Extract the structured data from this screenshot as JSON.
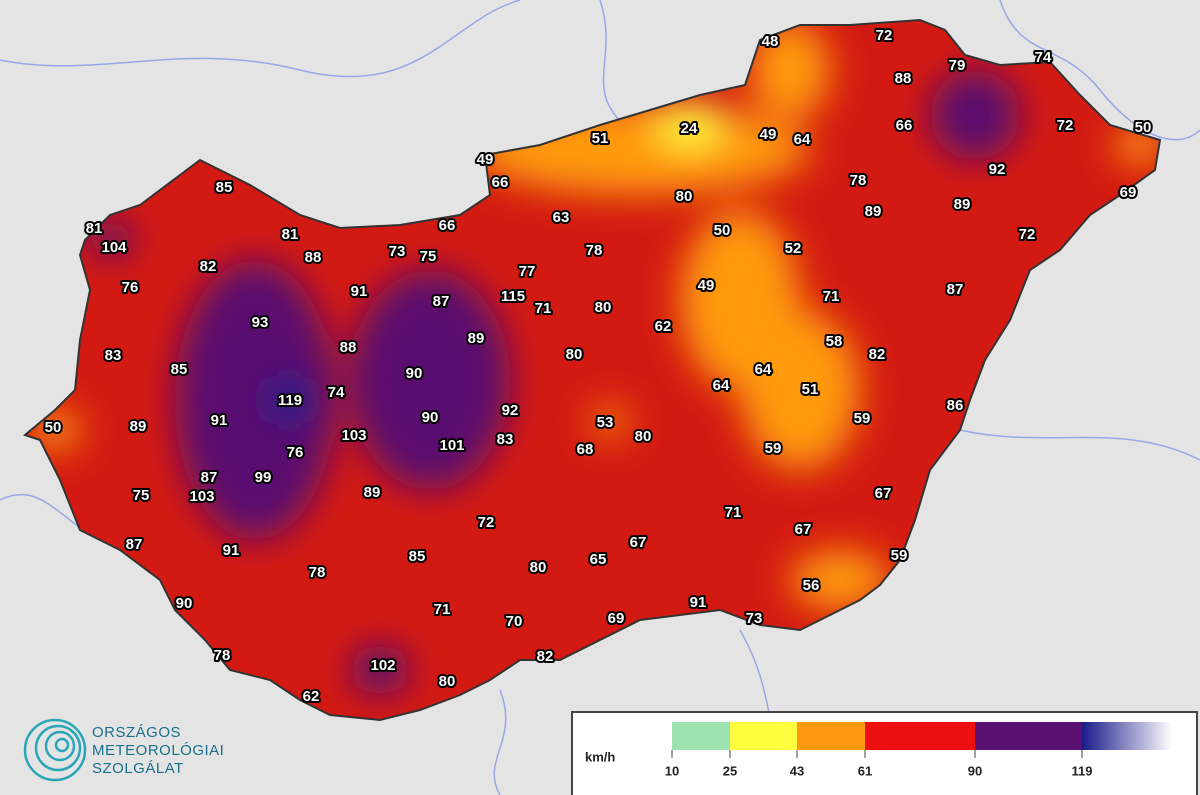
{
  "stations": [
    48,
    72,
    74,
    79,
    88,
    51,
    24,
    49,
    64,
    66,
    72,
    50,
    49,
    66,
    80,
    78,
    92,
    89,
    89,
    69,
    85,
    63,
    66,
    50,
    72,
    81,
    104,
    81,
    88,
    73,
    75,
    78,
    52,
    82,
    77,
    76,
    91,
    49,
    87,
    115,
    71,
    80,
    71,
    87,
    93,
    62,
    89,
    58,
    83,
    88,
    80,
    82,
    85,
    90,
    64,
    74,
    64,
    51,
    119,
    92,
    86,
    89,
    91,
    90,
    53,
    80,
    59,
    50,
    103,
    101,
    83,
    68,
    59,
    76,
    87,
    99,
    103,
    75,
    89,
    67,
    72,
    71,
    67,
    87,
    91,
    67,
    59,
    85,
    80,
    65,
    78,
    56,
    90,
    71,
    91,
    70,
    69,
    73,
    78,
    82,
    102,
    80,
    62
  ],
  "legend": {
    "unit": "km/h",
    "ticks": [
      10,
      25,
      43,
      61,
      90,
      119
    ],
    "colors": [
      "#9de3b0",
      "#ffff40",
      "#ff9a10",
      "#ee1010",
      "#5a1070",
      "#1a1a8a"
    ]
  },
  "logo": {
    "lines": [
      "ORSZÁGOS",
      "METEOROLÓGIAI",
      "SZOLGÁLAT"
    ]
  }
}
